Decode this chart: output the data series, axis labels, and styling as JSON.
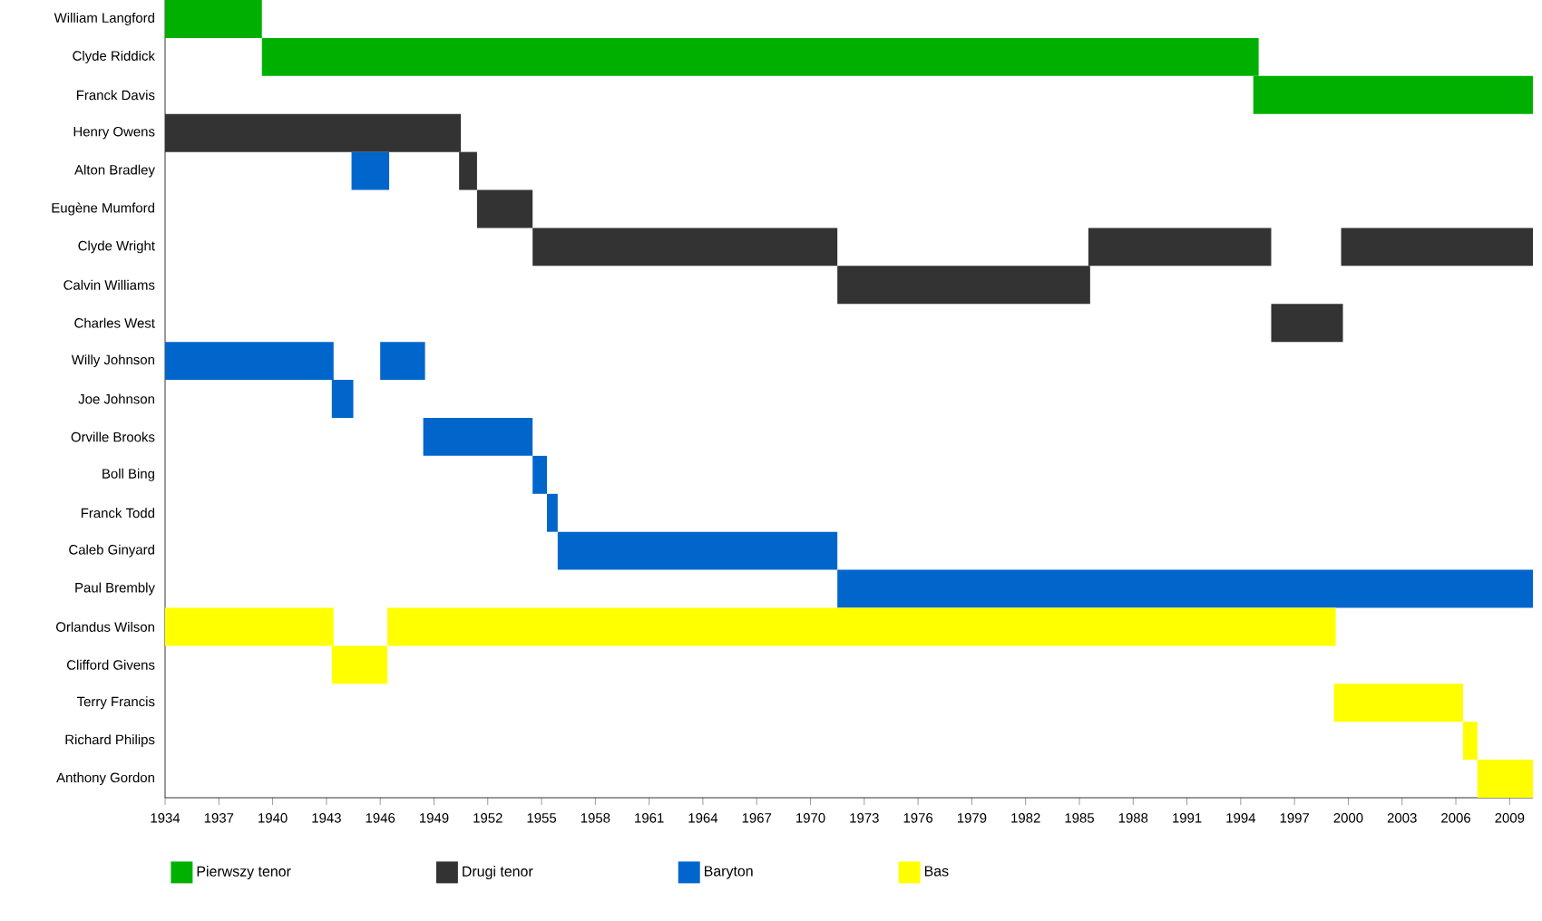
{
  "chart_data": {
    "type": "bar",
    "orientation": "horizontal",
    "categories": [
      "William Langford",
      "Clyde Riddick",
      "Franck Davis",
      "Henry Owens",
      "Alton Bradley",
      "Eugène Mumford",
      "Clyde Wright",
      "Calvin Williams",
      "Charles West",
      "Willy Johnson",
      "Joe Johnson",
      "Orville Brooks",
      "Boll Bing",
      "Franck Todd",
      "Caleb Ginyard",
      "Paul Brembly",
      "Orlandus Wilson",
      "Clifford Givens",
      "Terry Francis",
      "Richard Philips",
      "Anthony Gordon"
    ],
    "xlim": [
      1934,
      2010.3
    ],
    "xticks": [
      1934,
      1937,
      1940,
      1943,
      1946,
      1949,
      1952,
      1955,
      1958,
      1961,
      1964,
      1967,
      1970,
      1973,
      1976,
      1979,
      1982,
      1985,
      1988,
      1991,
      1994,
      1997,
      2000,
      2003,
      2006,
      2009
    ],
    "legend": "bottom",
    "grid": false,
    "series": [
      {
        "name": "Pierwszy tenor",
        "color": "#00b000",
        "base": [
          1934,
          1939.4,
          1994.7,
          null,
          null,
          null,
          null,
          null,
          null,
          null,
          null,
          null,
          null,
          null,
          null,
          null,
          null,
          null,
          null,
          null,
          null
        ],
        "values": [
          5.4,
          55.6,
          15.6,
          null,
          null,
          null,
          null,
          null,
          null,
          null,
          null,
          null,
          null,
          null,
          null,
          null,
          null,
          null,
          null,
          null,
          null
        ]
      },
      {
        "name": "Drugi tenor",
        "color": "#333333",
        "base": [
          null,
          null,
          null,
          1934,
          1950.4,
          1951.4,
          1954.5,
          1971.5,
          1995.7,
          null,
          null,
          null,
          null,
          null,
          null,
          null,
          null,
          null,
          null,
          null,
          null
        ],
        "values": [
          null,
          null,
          null,
          16.5,
          1.0,
          3.1,
          17.0,
          14.1,
          4.0,
          null,
          null,
          null,
          null,
          null,
          null,
          null,
          null,
          null,
          null,
          null,
          null
        ]
      },
      {
        "color": "#333333",
        "base": [
          null,
          null,
          null,
          null,
          null,
          null,
          1985.5,
          null,
          null,
          null,
          null,
          null,
          null,
          null,
          null,
          null,
          null,
          null,
          null,
          null,
          null
        ],
        "values": [
          null,
          null,
          null,
          null,
          null,
          null,
          10.2,
          null,
          null,
          null,
          null,
          null,
          null,
          null,
          null,
          null,
          null,
          null,
          null,
          null,
          null
        ]
      },
      {
        "color": "#333333",
        "base": [
          null,
          null,
          null,
          null,
          null,
          null,
          1999.6,
          null,
          null,
          null,
          null,
          null,
          null,
          null,
          null,
          null,
          null,
          null,
          null,
          null,
          null
        ],
        "values": [
          null,
          null,
          null,
          null,
          null,
          null,
          10.7,
          null,
          null,
          null,
          null,
          null,
          null,
          null,
          null,
          null,
          null,
          null,
          null,
          null,
          null
        ]
      },
      {
        "name": "Baryton",
        "color": "#0066cc",
        "base": [
          null,
          null,
          null,
          null,
          1944.4,
          null,
          null,
          null,
          null,
          1934,
          1943.3,
          1948.4,
          1954.5,
          1955.3,
          1955.9,
          1971.5,
          null,
          null,
          null,
          null,
          null
        ],
        "values": [
          null,
          null,
          null,
          null,
          2.1,
          null,
          null,
          null,
          null,
          9.4,
          1.2,
          6.1,
          0.8,
          0.6,
          15.6,
          38.8,
          null,
          null,
          null,
          null,
          null
        ]
      },
      {
        "color": "#0066cc",
        "base": [
          null,
          null,
          null,
          null,
          null,
          null,
          null,
          null,
          null,
          1946.0,
          null,
          null,
          null,
          null,
          null,
          null,
          null,
          null,
          null,
          null,
          null
        ],
        "values": [
          null,
          null,
          null,
          null,
          null,
          null,
          null,
          null,
          null,
          2.5,
          null,
          null,
          null,
          null,
          null,
          null,
          null,
          null,
          null,
          null,
          null
        ]
      },
      {
        "name": "Bas",
        "color": "#ffff00",
        "base": [
          null,
          null,
          null,
          null,
          null,
          null,
          null,
          null,
          null,
          null,
          null,
          null,
          null,
          null,
          null,
          null,
          1934,
          1943.3,
          1999.2,
          2006.4,
          2007.2
        ],
        "values": [
          null,
          null,
          null,
          null,
          null,
          null,
          null,
          null,
          null,
          null,
          null,
          null,
          null,
          null,
          null,
          null,
          9.4,
          3.1,
          7.2,
          0.8,
          3.1
        ]
      },
      {
        "color": "#ffff00",
        "base": [
          null,
          null,
          null,
          null,
          null,
          null,
          null,
          null,
          null,
          null,
          null,
          null,
          null,
          null,
          null,
          null,
          1946.4,
          null,
          null,
          null,
          null
        ],
        "values": [
          null,
          null,
          null,
          null,
          null,
          null,
          null,
          null,
          null,
          null,
          null,
          null,
          null,
          null,
          null,
          null,
          52.9,
          null,
          null,
          null,
          null
        ]
      }
    ]
  }
}
